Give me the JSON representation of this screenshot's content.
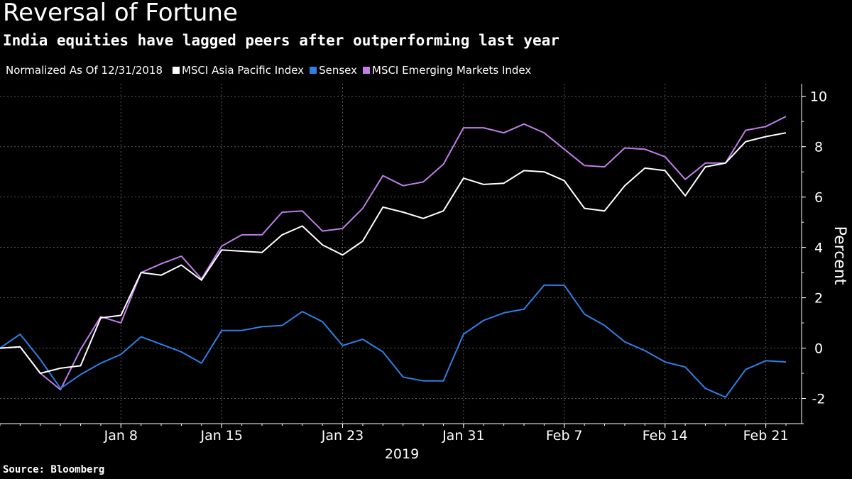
{
  "header": {
    "title": "Reversal of Fortune",
    "subtitle": "India equities have lagged peers after outperforming last year"
  },
  "legend": {
    "note": "Normalized As Of 12/31/2018"
  },
  "footer": {
    "source": "Source: Bloomberg"
  },
  "chart_data": {
    "type": "line",
    "title": "Reversal of Fortune",
    "subtitle": "India equities have lagged peers after outperforming last year",
    "ylabel": "Percent",
    "xlabel": "2019",
    "ylim": [
      -3,
      10.5
    ],
    "yticks": [
      -2,
      0,
      2,
      4,
      6,
      8,
      10
    ],
    "ytick_labels": [
      "-2",
      "0",
      "2",
      "4",
      "6",
      "8",
      "10"
    ],
    "y_axis_side": "right",
    "grid": true,
    "legend_position": "top",
    "x_dates": [
      "2018-12-31",
      "2019-01-01",
      "2019-01-02",
      "2019-01-03",
      "2019-01-04",
      "2019-01-07",
      "2019-01-08",
      "2019-01-09",
      "2019-01-10",
      "2019-01-11",
      "2019-01-14",
      "2019-01-15",
      "2019-01-16",
      "2019-01-17",
      "2019-01-18",
      "2019-01-21",
      "2019-01-22",
      "2019-01-23",
      "2019-01-24",
      "2019-01-25",
      "2019-01-28",
      "2019-01-29",
      "2019-01-30",
      "2019-01-31",
      "2019-02-01",
      "2019-02-04",
      "2019-02-05",
      "2019-02-06",
      "2019-02-07",
      "2019-02-08",
      "2019-02-11",
      "2019-02-12",
      "2019-02-13",
      "2019-02-14",
      "2019-02-15",
      "2019-02-18",
      "2019-02-19",
      "2019-02-20",
      "2019-02-21",
      "2019-02-22"
    ],
    "xticks": [
      {
        "label": "Jan 8",
        "date": "2019-01-08"
      },
      {
        "label": "Jan 15",
        "date": "2019-01-15"
      },
      {
        "label": "Jan 23",
        "date": "2019-01-23"
      },
      {
        "label": "Jan 31",
        "date": "2019-01-31"
      },
      {
        "label": "Feb 7",
        "date": "2019-02-07"
      },
      {
        "label": "Feb 14",
        "date": "2019-02-14"
      },
      {
        "label": "Feb 21",
        "date": "2019-02-21"
      }
    ],
    "series": [
      {
        "name": "MSCI Asia Pacific Index",
        "color": "#ffffff",
        "values": [
          0,
          0.05,
          -1.0,
          -0.8,
          -0.7,
          1.2,
          1.3,
          3.0,
          2.9,
          3.3,
          2.7,
          3.9,
          3.85,
          3.8,
          4.5,
          4.85,
          4.1,
          3.7,
          4.25,
          5.6,
          5.4,
          5.15,
          5.45,
          6.75,
          6.5,
          6.55,
          7.05,
          7.0,
          6.65,
          5.55,
          5.45,
          6.45,
          7.15,
          7.05,
          6.05,
          7.2,
          7.35,
          8.2,
          8.4,
          8.55
        ]
      },
      {
        "name": "Sensex",
        "color": "#2f7fe6",
        "values": [
          0,
          0.55,
          -0.45,
          -1.6,
          -1.05,
          -0.6,
          -0.25,
          0.45,
          0.15,
          -0.15,
          -0.6,
          0.7,
          0.7,
          0.85,
          0.9,
          1.45,
          1.05,
          0.1,
          0.35,
          -0.15,
          -1.15,
          -1.3,
          -1.3,
          0.55,
          1.1,
          1.4,
          1.55,
          2.5,
          2.5,
          1.35,
          0.9,
          0.25,
          -0.1,
          -0.55,
          -0.75,
          -1.6,
          -1.95,
          -0.85,
          -0.5,
          -0.55
        ]
      },
      {
        "name": "MSCI Emerging Markets Index",
        "color": "#c07ee8",
        "values": [
          0,
          0.05,
          -1.0,
          -1.65,
          -0.05,
          1.25,
          1.0,
          3.0,
          3.35,
          3.65,
          2.75,
          4.05,
          4.5,
          4.5,
          5.4,
          5.45,
          4.65,
          4.75,
          5.55,
          6.85,
          6.45,
          6.6,
          7.3,
          8.75,
          8.75,
          8.55,
          8.9,
          8.55,
          7.9,
          7.25,
          7.2,
          7.95,
          7.9,
          7.6,
          6.7,
          7.35,
          7.35,
          8.65,
          8.8,
          9.2
        ]
      }
    ]
  }
}
